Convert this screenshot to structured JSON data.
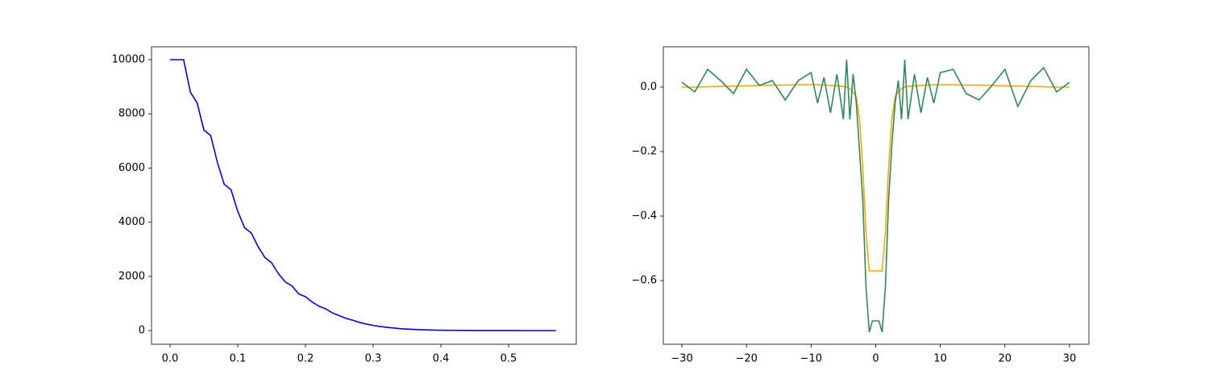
{
  "chart_data": [
    {
      "type": "line",
      "x": [
        0,
        0.01,
        0.02,
        0.03,
        0.04,
        0.05,
        0.06,
        0.07,
        0.08,
        0.09,
        0.1,
        0.11,
        0.12,
        0.13,
        0.14,
        0.15,
        0.16,
        0.17,
        0.18,
        0.19,
        0.2,
        0.21,
        0.22,
        0.23,
        0.24,
        0.25,
        0.26,
        0.27,
        0.28,
        0.29,
        0.3,
        0.31,
        0.32,
        0.33,
        0.34,
        0.35,
        0.36,
        0.37,
        0.38,
        0.39,
        0.4,
        0.41,
        0.42,
        0.43,
        0.44,
        0.45,
        0.46,
        0.47,
        0.48,
        0.49,
        0.5,
        0.51,
        0.52,
        0.53,
        0.54,
        0.55,
        0.56,
        0.57
      ],
      "values": [
        10000,
        10000,
        10000,
        8800,
        8400,
        7400,
        7200,
        6200,
        5400,
        5200,
        4400,
        3800,
        3600,
        3100,
        2700,
        2500,
        2100,
        1800,
        1650,
        1350,
        1250,
        1050,
        900,
        800,
        650,
        550,
        450,
        380,
        300,
        240,
        190,
        150,
        120,
        95,
        70,
        55,
        42,
        32,
        24,
        18,
        13,
        10,
        8,
        6,
        4,
        3,
        2,
        2,
        1,
        1,
        1,
        1,
        0,
        0,
        0,
        0,
        0,
        0
      ],
      "color": "#0000ff",
      "xlim": [
        -0.0274,
        0.6
      ],
      "ylim": [
        -506,
        10476
      ],
      "xticks": [
        {
          "value": 0,
          "label": "0.0"
        },
        0.1,
        0.2,
        0.3,
        0.4,
        0.5
      ],
      "yticks": [
        0,
        2000,
        4000,
        6000,
        8000,
        10000
      ]
    },
    {
      "type": "line",
      "x": [
        -30,
        -28,
        -26,
        -24,
        -22,
        -20,
        -18,
        -16,
        -14,
        -12,
        -10,
        -9,
        -8,
        -7,
        -6,
        -5,
        -4.5,
        -4,
        -3.5,
        -3,
        -2.5,
        -2,
        -1.5,
        -1,
        -0.5,
        0,
        0.5,
        1,
        1.5,
        2,
        2.5,
        3,
        3.5,
        4,
        4.5,
        5,
        6,
        7,
        8,
        9,
        10,
        12,
        14,
        16,
        18,
        20,
        22,
        24,
        26,
        28,
        30
      ],
      "series": [
        {
          "color": "#ffa500",
          "values": [
            0,
            0,
            0.001,
            0.002,
            0.003,
            0.004,
            0.005,
            0.006,
            0.006,
            0.007,
            0.007,
            0.007,
            0.006,
            0.005,
            0.004,
            0.002,
            0,
            -0.005,
            -0.015,
            -0.03,
            -0.1,
            -0.25,
            -0.45,
            -0.57,
            -0.57,
            -0.57,
            -0.57,
            -0.57,
            -0.45,
            -0.25,
            -0.1,
            -0.03,
            -0.015,
            -0.005,
            0,
            0.002,
            0.004,
            0.005,
            0.006,
            0.007,
            0.007,
            0.007,
            0.006,
            0.006,
            0.005,
            0.004,
            0.003,
            0.002,
            0.001,
            0,
            0
          ]
        },
        {
          "color": "#2e8b57",
          "values": [
            0.015,
            -0.015,
            0.055,
            0.02,
            -0.02,
            0.055,
            0.005,
            0.02,
            -0.04,
            0.02,
            0.045,
            -0.05,
            0.03,
            -0.08,
            0.04,
            -0.1,
            0.085,
            -0.1,
            0.04,
            -0.05,
            -0.2,
            -0.35,
            -0.62,
            -0.76,
            -0.725,
            -0.725,
            -0.725,
            -0.76,
            -0.62,
            -0.35,
            -0.18,
            -0.05,
            0.02,
            -0.1,
            0.085,
            -0.1,
            0.04,
            -0.08,
            0.03,
            -0.05,
            0.045,
            0.055,
            -0.02,
            -0.04,
            0.005,
            0.055,
            -0.06,
            0.02,
            0.06,
            -0.015,
            0.015
          ]
        }
      ],
      "xlim": [
        -32.87,
        33.0
      ],
      "ylim": [
        -0.7975,
        0.125
      ],
      "xticks": [
        {
          "value": -30,
          "label": "−30"
        },
        {
          "value": -20,
          "label": "−20"
        },
        {
          "value": -10,
          "label": "−10"
        },
        0,
        10,
        20,
        30
      ],
      "yticks": [
        {
          "value": -0.6,
          "label": "−0.6"
        },
        {
          "value": -0.4,
          "label": "−0.4"
        },
        {
          "value": -0.2,
          "label": "−0.2"
        },
        {
          "value": 0,
          "label": "0.0"
        }
      ]
    }
  ]
}
